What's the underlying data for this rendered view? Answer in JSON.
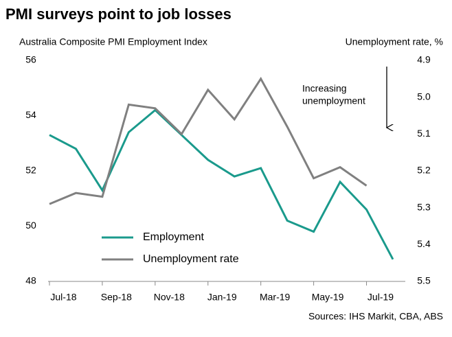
{
  "chart_data": {
    "type": "line",
    "title": "PMI surveys point to job losses",
    "y_label": "Australia Composite PMI Employment Index",
    "y2_label": "Unemployment rate, %",
    "annotation": [
      "Increasing",
      "unemployment"
    ],
    "source": "Sources: IHS Markit, CBA, ABS",
    "categories": [
      null,
      "Jul-18",
      null,
      "Sep-18",
      null,
      "Nov-18",
      null,
      "Jan-19",
      null,
      "Mar-19",
      null,
      "May-19",
      null,
      "Jul-19"
    ],
    "series": [
      {
        "name": "Employment",
        "color": "#1a9a8c",
        "values": [
          53.3,
          52.8,
          51.3,
          53.4,
          54.2,
          53.3,
          52.4,
          51.8,
          52.1,
          50.2,
          49.8,
          51.6,
          50.6,
          48.8
        ]
      },
      {
        "name": "Unemployment rate",
        "color": "#808080",
        "axis": "y2",
        "values": [
          5.29,
          5.26,
          5.27,
          5.02,
          5.03,
          5.1,
          4.98,
          5.06,
          4.95,
          5.08,
          5.22,
          5.19,
          5.24,
          null
        ]
      }
    ],
    "ylim": [
      48,
      56
    ],
    "yticks": [
      48,
      50,
      52,
      54,
      56
    ],
    "y2lim": [
      5.5,
      4.9
    ],
    "y2inverted": true,
    "y2ticks": [
      4.9,
      {
        "value": 5,
        "label": "5.0"
      },
      5.1,
      5.2,
      5.3,
      5.4,
      5.5
    ],
    "grid": false,
    "legend": "lower-left"
  }
}
